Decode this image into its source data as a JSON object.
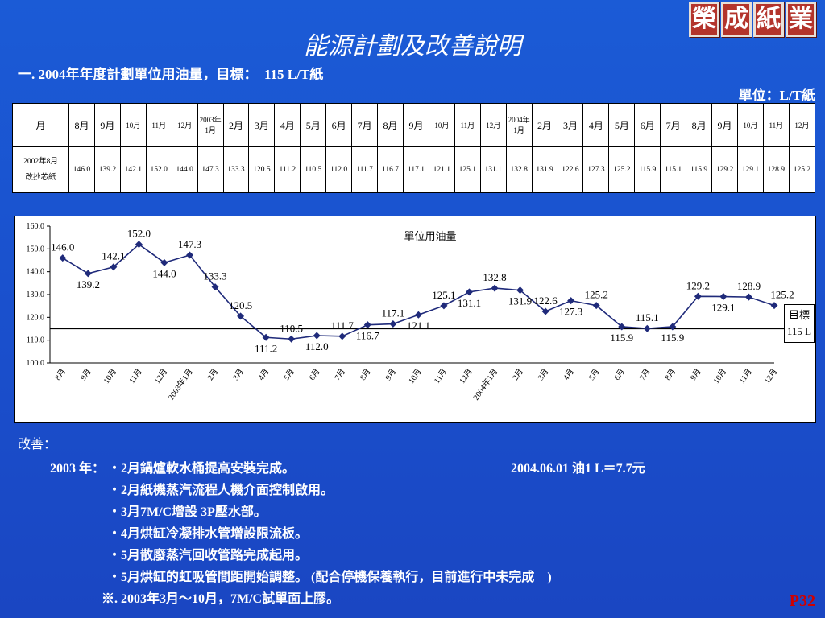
{
  "title": "能源計劃及改善說明",
  "logo_text": [
    "榮",
    "成",
    "紙",
    "業"
  ],
  "subtitle": "一. 2004年年度計劃單位用油量，目標：　115 L/T紙",
  "unit": "單位：L/T紙",
  "table": {
    "header_label": "月",
    "months": [
      "8月",
      "9月",
      "10月",
      "11月",
      "12月",
      "2003年1月",
      "2月",
      "3月",
      "4月",
      "5月",
      "6月",
      "7月",
      "8月",
      "9月",
      "10月",
      "11月",
      "12月",
      "2004年1月",
      "2月",
      "3月",
      "4月",
      "5月",
      "6月",
      "7月",
      "8月",
      "9月",
      "10月",
      "11月",
      "12月"
    ],
    "row_label": "2002年8月改抄芯紙",
    "values": [
      "146.0",
      "139.2",
      "142.1",
      "152.0",
      "144.0",
      "147.3",
      "133.3",
      "120.5",
      "111.2",
      "110.5",
      "112.0",
      "111.7",
      "116.7",
      "117.1",
      "121.1",
      "125.1",
      "131.1",
      "132.8",
      "131.9",
      "122.6",
      "127.3",
      "125.2",
      "115.9",
      "115.1",
      "115.9",
      "129.2",
      "129.1",
      "128.9",
      "125.2"
    ]
  },
  "chart_data": {
    "type": "line",
    "title": "單位用油量",
    "categories": [
      "8月",
      "9月",
      "10月",
      "11月",
      "12月",
      "2003年1月",
      "2月",
      "3月",
      "4月",
      "5月",
      "6月",
      "7月",
      "8月",
      "9月",
      "10月",
      "11月",
      "12月",
      "2004年1月",
      "2月",
      "3月",
      "4月",
      "5月",
      "6月",
      "7月",
      "8月",
      "9月",
      "10月",
      "11月",
      "12月"
    ],
    "series": [
      {
        "values": [
          146.0,
          139.2,
          142.1,
          152.0,
          144.0,
          147.3,
          133.3,
          120.5,
          111.2,
          110.5,
          112.0,
          111.7,
          116.7,
          117.1,
          121.1,
          125.1,
          131.1,
          132.8,
          131.9,
          122.6,
          127.3,
          125.2,
          115.9,
          115.1,
          115.9,
          129.2,
          129.1,
          128.9,
          125.2
        ],
        "color": "#1f2a7a"
      }
    ],
    "target_value": 115,
    "target_label": [
      "目標",
      "115 L"
    ],
    "ylim": [
      100,
      160
    ],
    "yticks": [
      "100.0",
      "110.0",
      "120.0",
      "130.0",
      "140.0",
      "150.0",
      "160.0"
    ],
    "label_positions": [
      "above",
      "below",
      "above",
      "above",
      "below",
      "above",
      "above",
      "above",
      "below",
      "above",
      "below",
      "above",
      "below",
      "above",
      "below",
      "above",
      "below",
      "above",
      "below",
      "above",
      "below",
      "above",
      "below",
      "above",
      "below",
      "above",
      "below",
      "above",
      "above"
    ],
    "grid": false,
    "legend": "none"
  },
  "notes": {
    "heading": "改善：",
    "year_label": "2003 年：",
    "items": [
      "・2月鍋爐軟水桶提高安裝完成。",
      "・2月紙機蒸汽流程人機介面控制啟用。",
      "・3月7M/C增設 3P壓水部。",
      "・4月烘缸冷凝排水管增設限流板。",
      "・5月散廢蒸汽回收管路完成起用。",
      "・5月烘缸的虹吸管間距開始調整。 (配合停機保養執行，目前進行中未完成　)"
    ],
    "footnote": "※. 2003年3月～10月，7M/C試單面上膠。",
    "price": "2004.06.01 油1 L＝7.7元"
  },
  "page_number": "P32"
}
